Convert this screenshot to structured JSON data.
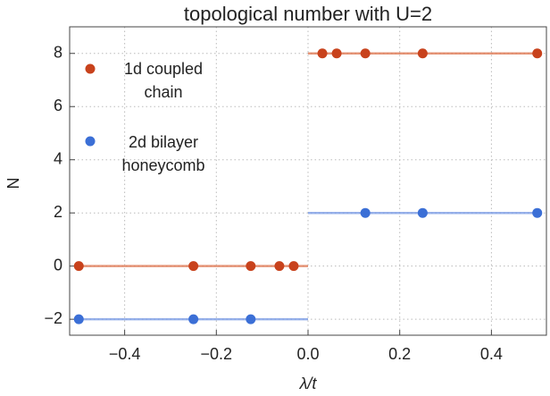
{
  "chart_data": {
    "type": "scatter",
    "title": "topological number with U=2",
    "x_label": "λ/t",
    "y_label": "N",
    "xlim": [
      -0.52,
      0.52
    ],
    "ylim": [
      -2.6,
      9
    ],
    "xticks": [
      {
        "value": -0.4,
        "label": "−0.4"
      },
      {
        "value": -0.2,
        "label": "−0.2"
      },
      {
        "value": 0,
        "label": "0.0"
      },
      {
        "value": 0.2,
        "label": "0.2"
      },
      {
        "value": 0.4,
        "label": "0.4"
      }
    ],
    "yticks": [
      {
        "value": -2,
        "label": "−2"
      },
      0,
      2,
      4,
      6,
      8
    ],
    "grid": true,
    "legend": "upper left",
    "series": [
      {
        "name": "1d coupled chain",
        "color": "#c8421c",
        "x": [
          -0.5,
          -0.25,
          -0.125,
          -0.0625,
          -0.03125,
          0.03125,
          0.0625,
          0.125,
          0.25,
          0.5
        ],
        "values": [
          0,
          0,
          0,
          0,
          0,
          8,
          8,
          8,
          8,
          8
        ]
      },
      {
        "name": "2d bilayer honeycomb",
        "color": "#3b6fd6",
        "x": [
          -0.5,
          -0.25,
          -0.125,
          0.125,
          0.25,
          0.5
        ],
        "values": [
          -2,
          -2,
          -2,
          2,
          2,
          2
        ]
      }
    ],
    "lines": [
      {
        "color": "#e07a55",
        "x": [
          -0.5,
          0,
          null,
          0,
          0.5
        ],
        "values": [
          0,
          0,
          null,
          8,
          8
        ]
      },
      {
        "color": "#7d9de6",
        "x": [
          -0.5,
          0,
          null,
          0,
          0.5
        ],
        "values": [
          -2,
          -2,
          null,
          2,
          2
        ]
      }
    ]
  }
}
